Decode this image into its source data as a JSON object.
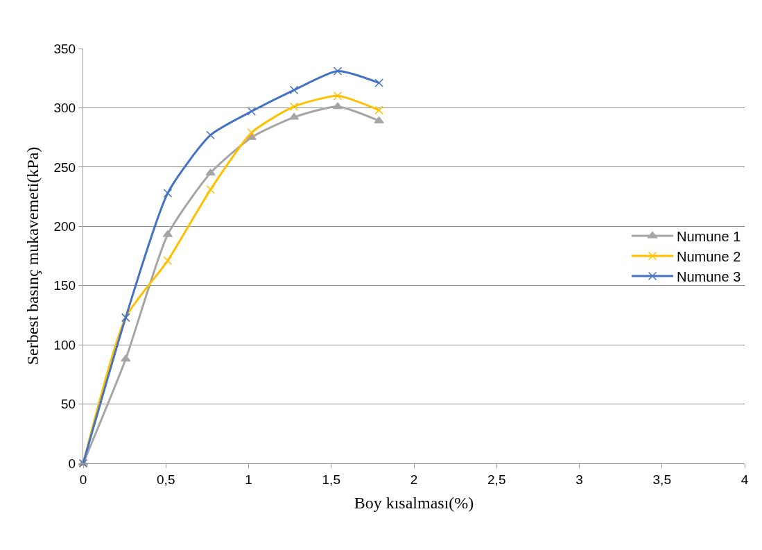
{
  "chart_data": {
    "type": "line",
    "xlabel": "Boy kısalması(%)",
    "ylabel": "Serbest basınç mukavemeti(kPa)",
    "x": [
      0,
      0.257,
      0.511,
      0.77,
      1.018,
      1.275,
      1.539,
      1.789
    ],
    "series": [
      {
        "name": "Numune 1",
        "color": "#a5a5a5",
        "marker": "triangle",
        "values": [
          0,
          88,
          193,
          245,
          275,
          292,
          301,
          289
        ]
      },
      {
        "name": "Numune 2",
        "color": "#ffc000",
        "marker": "cross",
        "values": [
          0,
          123,
          171,
          231,
          279,
          301,
          310,
          298
        ]
      },
      {
        "name": "Numune 3",
        "color": "#4472c4",
        "marker": "cross",
        "values": [
          0,
          123,
          228,
          277,
          297,
          315,
          331,
          321
        ]
      }
    ],
    "xlim": [
      0,
      4
    ],
    "xticks": [
      {
        "value": 0,
        "label": "0"
      },
      {
        "value": 0.5,
        "label": "0,5"
      },
      {
        "value": 1,
        "label": "1"
      },
      {
        "value": 1.5,
        "label": "1,5"
      },
      {
        "value": 2,
        "label": "2"
      },
      {
        "value": 2.5,
        "label": "2,5"
      },
      {
        "value": 3,
        "label": "3"
      },
      {
        "value": 3.5,
        "label": "3,5"
      },
      {
        "value": 4,
        "label": "4"
      }
    ],
    "ylim": [
      0,
      350
    ],
    "yticks": [
      0,
      50,
      100,
      150,
      200,
      250,
      300,
      350
    ],
    "grid": "y",
    "legend": "right",
    "line_style": "solid"
  }
}
